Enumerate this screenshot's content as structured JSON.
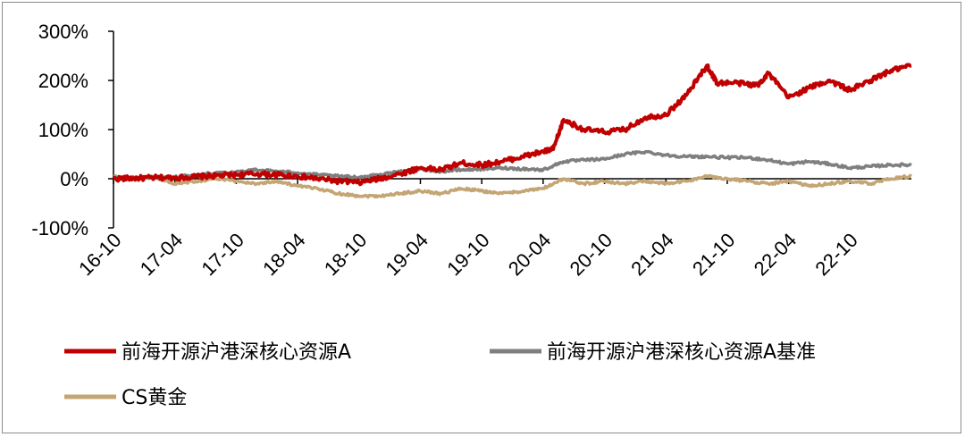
{
  "chart_data": {
    "type": "line",
    "title": "",
    "xlabel": "",
    "ylabel": "",
    "ylim": [
      -100,
      300
    ],
    "yticks": [
      -100,
      0,
      100,
      200,
      300
    ],
    "ytick_labels": [
      "-100%",
      "0%",
      "100%",
      "200%",
      "300%"
    ],
    "xticks": [
      "2016-10",
      "2017-04",
      "2017-10",
      "2018-04",
      "2018-10",
      "2019-04",
      "2019-10",
      "2020-04",
      "2020-10",
      "2021-04",
      "2021-10",
      "2022-04",
      "2022-10"
    ],
    "xtick_labels": [
      "16-10",
      "17-04",
      "17-10",
      "18-04",
      "18-10",
      "19-04",
      "19-10",
      "20-04",
      "20-10",
      "21-04",
      "21-10",
      "22-04",
      "22-10"
    ],
    "x_range": [
      "2016-10",
      "2023-04"
    ],
    "grid": false,
    "legend_position": "bottom",
    "series": [
      {
        "name": "前海开源沪港深核心资源A",
        "color": "#c00000",
        "points": [
          [
            "2016-10",
            0
          ],
          [
            "2016-12",
            1
          ],
          [
            "2017-02",
            2
          ],
          [
            "2017-04",
            2
          ],
          [
            "2017-06",
            4
          ],
          [
            "2017-08",
            6
          ],
          [
            "2017-10",
            8
          ],
          [
            "2017-12",
            10
          ],
          [
            "2018-02",
            8
          ],
          [
            "2018-04",
            5
          ],
          [
            "2018-06",
            0
          ],
          [
            "2018-08",
            -5
          ],
          [
            "2018-10",
            -8
          ],
          [
            "2018-12",
            0
          ],
          [
            "2019-02",
            10
          ],
          [
            "2019-04",
            22
          ],
          [
            "2019-06",
            18
          ],
          [
            "2019-08",
            32
          ],
          [
            "2019-10",
            28
          ],
          [
            "2019-12",
            35
          ],
          [
            "2020-02",
            45
          ],
          [
            "2020-04",
            55
          ],
          [
            "2020-05",
            60
          ],
          [
            "2020-06",
            120
          ],
          [
            "2020-08",
            100
          ],
          [
            "2020-10",
            95
          ],
          [
            "2020-12",
            100
          ],
          [
            "2021-02",
            125
          ],
          [
            "2021-04",
            130
          ],
          [
            "2021-06",
            170
          ],
          [
            "2021-08",
            230
          ],
          [
            "2021-09",
            195
          ],
          [
            "2021-11",
            195
          ],
          [
            "2022-01",
            190
          ],
          [
            "2022-02",
            215
          ],
          [
            "2022-04",
            165
          ],
          [
            "2022-06",
            185
          ],
          [
            "2022-08",
            200
          ],
          [
            "2022-10",
            180
          ],
          [
            "2022-12",
            200
          ],
          [
            "2023-02",
            220
          ],
          [
            "2023-04",
            230
          ]
        ]
      },
      {
        "name": "前海开源沪港深核心资源A基准",
        "color": "#7f7f7f",
        "points": [
          [
            "2016-10",
            0
          ],
          [
            "2016-12",
            2
          ],
          [
            "2017-02",
            3
          ],
          [
            "2017-04",
            3
          ],
          [
            "2017-06",
            8
          ],
          [
            "2017-08",
            12
          ],
          [
            "2017-10",
            14
          ],
          [
            "2017-12",
            18
          ],
          [
            "2018-02",
            15
          ],
          [
            "2018-04",
            12
          ],
          [
            "2018-06",
            8
          ],
          [
            "2018-08",
            5
          ],
          [
            "2018-10",
            3
          ],
          [
            "2018-12",
            8
          ],
          [
            "2019-02",
            15
          ],
          [
            "2019-04",
            20
          ],
          [
            "2019-06",
            15
          ],
          [
            "2019-08",
            18
          ],
          [
            "2019-10",
            20
          ],
          [
            "2019-12",
            22
          ],
          [
            "2020-02",
            20
          ],
          [
            "2020-04",
            18
          ],
          [
            "2020-06",
            35
          ],
          [
            "2020-08",
            38
          ],
          [
            "2020-10",
            40
          ],
          [
            "2020-12",
            50
          ],
          [
            "2021-02",
            55
          ],
          [
            "2021-04",
            48
          ],
          [
            "2021-06",
            45
          ],
          [
            "2021-08",
            45
          ],
          [
            "2021-10",
            43
          ],
          [
            "2021-12",
            43
          ],
          [
            "2022-02",
            38
          ],
          [
            "2022-04",
            30
          ],
          [
            "2022-06",
            35
          ],
          [
            "2022-08",
            30
          ],
          [
            "2022-10",
            22
          ],
          [
            "2022-12",
            25
          ],
          [
            "2023-02",
            28
          ],
          [
            "2023-04",
            28
          ]
        ]
      },
      {
        "name": "CS黄金",
        "color": "#c4a574",
        "points": [
          [
            "2016-10",
            5
          ],
          [
            "2016-12",
            0
          ],
          [
            "2017-02",
            3
          ],
          [
            "2017-04",
            -10
          ],
          [
            "2017-06",
            -5
          ],
          [
            "2017-08",
            0
          ],
          [
            "2017-10",
            -5
          ],
          [
            "2017-12",
            -10
          ],
          [
            "2018-02",
            -5
          ],
          [
            "2018-04",
            -15
          ],
          [
            "2018-06",
            -20
          ],
          [
            "2018-08",
            -30
          ],
          [
            "2018-10",
            -35
          ],
          [
            "2018-12",
            -35
          ],
          [
            "2019-02",
            -30
          ],
          [
            "2019-04",
            -25
          ],
          [
            "2019-06",
            -30
          ],
          [
            "2019-08",
            -20
          ],
          [
            "2019-10",
            -25
          ],
          [
            "2019-12",
            -30
          ],
          [
            "2020-02",
            -25
          ],
          [
            "2020-04",
            -20
          ],
          [
            "2020-06",
            0
          ],
          [
            "2020-08",
            -10
          ],
          [
            "2020-10",
            -5
          ],
          [
            "2020-12",
            -10
          ],
          [
            "2021-02",
            -5
          ],
          [
            "2021-04",
            -10
          ],
          [
            "2021-06",
            -5
          ],
          [
            "2021-08",
            5
          ],
          [
            "2021-10",
            0
          ],
          [
            "2021-12",
            -5
          ],
          [
            "2022-02",
            -10
          ],
          [
            "2022-04",
            -5
          ],
          [
            "2022-06",
            -15
          ],
          [
            "2022-08",
            -10
          ],
          [
            "2022-10",
            -5
          ],
          [
            "2022-12",
            -10
          ],
          [
            "2023-02",
            0
          ],
          [
            "2023-04",
            5
          ]
        ]
      }
    ]
  }
}
